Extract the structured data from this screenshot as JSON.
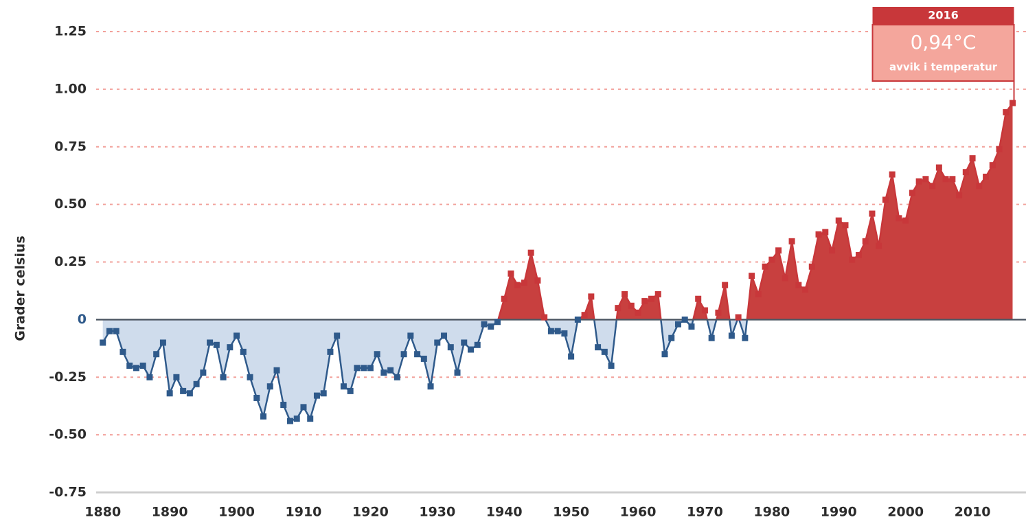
{
  "chart_data": {
    "type": "area",
    "y_label": "Grader celsius",
    "x": [
      1880,
      1881,
      1882,
      1883,
      1884,
      1885,
      1886,
      1887,
      1888,
      1889,
      1890,
      1891,
      1892,
      1893,
      1894,
      1895,
      1896,
      1897,
      1898,
      1899,
      1900,
      1901,
      1902,
      1903,
      1904,
      1905,
      1906,
      1907,
      1908,
      1909,
      1910,
      1911,
      1912,
      1913,
      1914,
      1915,
      1916,
      1917,
      1918,
      1919,
      1920,
      1921,
      1922,
      1923,
      1924,
      1925,
      1926,
      1927,
      1928,
      1929,
      1930,
      1931,
      1932,
      1933,
      1934,
      1935,
      1936,
      1937,
      1938,
      1939,
      1940,
      1941,
      1942,
      1943,
      1944,
      1945,
      1946,
      1947,
      1948,
      1949,
      1950,
      1951,
      1952,
      1953,
      1954,
      1955,
      1956,
      1957,
      1958,
      1959,
      1960,
      1961,
      1962,
      1963,
      1964,
      1965,
      1966,
      1967,
      1968,
      1969,
      1970,
      1971,
      1972,
      1973,
      1974,
      1975,
      1976,
      1977,
      1978,
      1979,
      1980,
      1981,
      1982,
      1983,
      1984,
      1985,
      1986,
      1987,
      1988,
      1989,
      1990,
      1991,
      1992,
      1993,
      1994,
      1995,
      1996,
      1997,
      1998,
      1999,
      2000,
      2001,
      2002,
      2003,
      2004,
      2005,
      2006,
      2007,
      2008,
      2009,
      2010,
      2011,
      2012,
      2013,
      2014,
      2015,
      2016
    ],
    "values": [
      -0.1,
      -0.05,
      -0.05,
      -0.14,
      -0.2,
      -0.21,
      -0.2,
      -0.25,
      -0.15,
      -0.1,
      -0.32,
      -0.25,
      -0.31,
      -0.32,
      -0.28,
      -0.23,
      -0.1,
      -0.11,
      -0.25,
      -0.12,
      -0.07,
      -0.14,
      -0.25,
      -0.34,
      -0.42,
      -0.29,
      -0.22,
      -0.37,
      -0.44,
      -0.43,
      -0.38,
      -0.43,
      -0.33,
      -0.32,
      -0.14,
      -0.07,
      -0.29,
      -0.31,
      -0.21,
      -0.21,
      -0.21,
      -0.15,
      -0.23,
      -0.22,
      -0.25,
      -0.15,
      -0.07,
      -0.15,
      -0.17,
      -0.29,
      -0.1,
      -0.07,
      -0.12,
      -0.23,
      -0.1,
      -0.13,
      -0.11,
      -0.02,
      -0.03,
      -0.01,
      0.09,
      0.2,
      0.15,
      0.16,
      0.29,
      0.17,
      0.01,
      -0.05,
      -0.05,
      -0.06,
      -0.16,
      0.0,
      0.02,
      0.1,
      -0.12,
      -0.14,
      -0.2,
      0.05,
      0.11,
      0.06,
      0.03,
      0.08,
      0.09,
      0.11,
      -0.15,
      -0.08,
      -0.02,
      0.0,
      -0.03,
      0.09,
      0.04,
      -0.08,
      0.03,
      0.15,
      -0.07,
      0.01,
      -0.08,
      0.19,
      0.11,
      0.23,
      0.26,
      0.3,
      0.18,
      0.34,
      0.15,
      0.13,
      0.23,
      0.37,
      0.38,
      0.3,
      0.43,
      0.41,
      0.26,
      0.28,
      0.34,
      0.46,
      0.32,
      0.52,
      0.63,
      0.44,
      0.43,
      0.55,
      0.6,
      0.61,
      0.58,
      0.66,
      0.61,
      0.61,
      0.54,
      0.64,
      0.7,
      0.58,
      0.62,
      0.67,
      0.74,
      0.9,
      0.94
    ],
    "positive_color": "#c8373a",
    "positive_fill": "#c8403f",
    "negative_color": "#2f5a8b",
    "negative_fill": "#cfdcec",
    "xlim": [
      1879,
      2018
    ],
    "xticks": [
      1880,
      1890,
      1900,
      1910,
      1920,
      1930,
      1940,
      1950,
      1960,
      1970,
      1980,
      1990,
      2000,
      2010
    ],
    "ylim": [
      -0.75,
      1.35
    ],
    "yticks": [
      -0.75,
      {
        "value": -0.5,
        "label": "-0.50"
      },
      -0.25,
      0,
      0.25,
      {
        "value": 0.5,
        "label": "0.50"
      },
      0.75,
      {
        "value": 1,
        "label": "1.00"
      },
      1.25
    ],
    "grid": true,
    "annotation": {
      "label": "2016",
      "value_label": "0,94°C",
      "text": "avvik i temperatur"
    }
  }
}
